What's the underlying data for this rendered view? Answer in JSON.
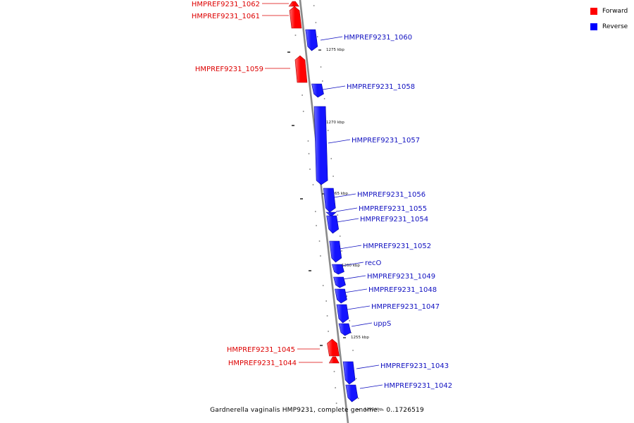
{
  "legend": {
    "items": [
      {
        "label": "Forward",
        "color": "#ff0000"
      },
      {
        "label": "Reverse",
        "color": "#0000ff"
      }
    ]
  },
  "caption": "Gardnerella vaginalis HMP9231, complete genome. - 0..1726519",
  "colors": {
    "forward": "#ff0000",
    "forward_light": "#ff6f6f",
    "reverse": "#1414ff",
    "reverse_light": "#6d6dff",
    "forward_text": "#dd0000",
    "reverse_text": "#1010c0",
    "axis": "#8a8a8a"
  },
  "scale_labels": [
    "1275 kbp",
    "1270 kbp",
    "1265 kbp",
    "1260 kbp",
    "1255 kbp",
    "1250 kbp"
  ],
  "genes": [
    {
      "name": "HMPREF9231_1062",
      "strand": "forward"
    },
    {
      "name": "HMPREF9231_1061",
      "strand": "forward"
    },
    {
      "name": "HMPREF9231_1060",
      "strand": "reverse"
    },
    {
      "name": "HMPREF9231_1059",
      "strand": "forward"
    },
    {
      "name": "HMPREF9231_1058",
      "strand": "reverse"
    },
    {
      "name": "HMPREF9231_1057",
      "strand": "reverse"
    },
    {
      "name": "HMPREF9231_1056",
      "strand": "reverse"
    },
    {
      "name": "HMPREF9231_1055",
      "strand": "reverse"
    },
    {
      "name": "HMPREF9231_1054",
      "strand": "reverse"
    },
    {
      "name": "HMPREF9231_1052",
      "strand": "reverse"
    },
    {
      "name": "recO",
      "strand": "reverse"
    },
    {
      "name": "HMPREF9231_1049",
      "strand": "reverse"
    },
    {
      "name": "HMPREF9231_1048",
      "strand": "reverse"
    },
    {
      "name": "HMPREF9231_1047",
      "strand": "reverse"
    },
    {
      "name": "uppS",
      "strand": "reverse"
    },
    {
      "name": "HMPREF9231_1045",
      "strand": "forward"
    },
    {
      "name": "HMPREF9231_1044",
      "strand": "forward"
    },
    {
      "name": "HMPREF9231_1043",
      "strand": "reverse"
    },
    {
      "name": "HMPREF9231_1042",
      "strand": "reverse"
    }
  ]
}
